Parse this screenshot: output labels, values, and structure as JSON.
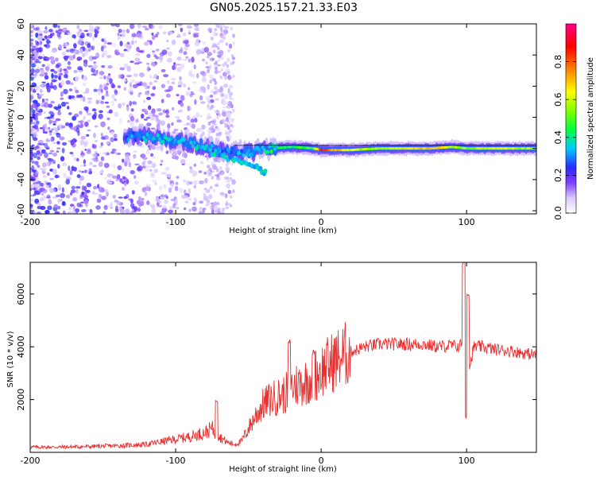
{
  "title": "GN05.2025.157.21.33.E03",
  "chart_data": [
    {
      "type": "heatmap",
      "xlabel": "Height of straight line (km)",
      "ylabel": "Frequency (Hz)",
      "xlim": [
        -200,
        148
      ],
      "ylim": [
        -62,
        60
      ],
      "x_ticks": [
        -200,
        -100,
        0,
        100
      ],
      "y_ticks": [
        60,
        40,
        20,
        0,
        -20,
        -40,
        -60
      ],
      "colorbar": {
        "label": "Normalized spectral amplitude",
        "range": [
          0,
          1
        ],
        "ticks": [
          "0.0",
          "0.2",
          "0.4",
          "0.6",
          "0.8"
        ],
        "tick_values": [
          0,
          0.2,
          0.4,
          0.6,
          0.8
        ]
      },
      "ridge": [
        {
          "x": -135,
          "y": -12,
          "amp": 0.25
        },
        {
          "x": -125,
          "y": -12,
          "amp": 0.3
        },
        {
          "x": -115,
          "y": -13,
          "amp": 0.35
        },
        {
          "x": -105,
          "y": -15,
          "amp": 0.35
        },
        {
          "x": -95,
          "y": -16,
          "amp": 0.3
        },
        {
          "x": -85,
          "y": -18,
          "amp": 0.35
        },
        {
          "x": -75,
          "y": -20,
          "amp": 0.3
        },
        {
          "x": -65,
          "y": -22,
          "amp": 0.3
        },
        {
          "x": -55,
          "y": -22,
          "amp": 0.3
        },
        {
          "x": -45,
          "y": -22,
          "amp": 0.35
        },
        {
          "x": -35,
          "y": -20,
          "amp": 0.4
        },
        {
          "x": -20,
          "y": -19,
          "amp": 0.45
        },
        {
          "x": -5,
          "y": -20,
          "amp": 0.5
        },
        {
          "x": 0,
          "y": -21,
          "amp": 0.85
        },
        {
          "x": 20,
          "y": -21,
          "amp": 0.6
        },
        {
          "x": 40,
          "y": -20,
          "amp": 0.55
        },
        {
          "x": 60,
          "y": -20,
          "amp": 0.65
        },
        {
          "x": 75,
          "y": -20,
          "amp": 0.7
        },
        {
          "x": 90,
          "y": -19,
          "amp": 0.6
        },
        {
          "x": 100,
          "y": -20,
          "amp": 0.55
        },
        {
          "x": 120,
          "y": -20,
          "amp": 0.6
        },
        {
          "x": 148,
          "y": -20,
          "amp": 0.55
        }
      ],
      "diverging_branch": [
        {
          "x": -75,
          "y": -23
        },
        {
          "x": -60,
          "y": -27
        },
        {
          "x": -45,
          "y": -32
        },
        {
          "x": -38,
          "y": -36
        }
      ],
      "noise_region": {
        "x": [
          -200,
          -60
        ],
        "y": [
          -62,
          60
        ],
        "amp": 0.18
      }
    },
    {
      "type": "line",
      "xlabel": "Height of straight line (km)",
      "ylabel": "SNR (10 * v/v)",
      "xlim": [
        -200,
        148
      ],
      "ylim": [
        0,
        7200
      ],
      "x_ticks": [
        -200,
        -100,
        0,
        100
      ],
      "y_ticks": [
        2000,
        4000,
        6000
      ],
      "series": [
        {
          "color": "#e83030",
          "x": [
            -200,
            -180,
            -160,
            -140,
            -120,
            -110,
            -100,
            -90,
            -80,
            -75,
            -70,
            -65,
            -60,
            -55,
            -50,
            -45,
            -40,
            -35,
            -30,
            -25,
            -20,
            -15,
            -10,
            -5,
            0,
            5,
            10,
            20,
            30,
            40,
            50,
            60,
            70,
            80,
            90,
            95,
            98,
            100,
            102,
            105,
            110,
            120,
            130,
            140,
            148
          ],
          "y": [
            200,
            200,
            220,
            250,
            300,
            400,
            500,
            600,
            750,
            900,
            600,
            400,
            300,
            400,
            900,
            1400,
            1800,
            2000,
            2100,
            2200,
            2500,
            2600,
            2700,
            2900,
            3100,
            3300,
            3500,
            3800,
            4000,
            4100,
            4100,
            4100,
            4100,
            4000,
            4050,
            4000,
            4300,
            3900,
            3200,
            4000,
            4000,
            3900,
            3850,
            3750,
            3700
          ]
        }
      ],
      "spikes": [
        {
          "x": -72,
          "y": 2000
        },
        {
          "x": -22,
          "y": 4200
        },
        {
          "x": -5,
          "y": 3800
        },
        {
          "x": 98,
          "y": 7200
        },
        {
          "x": 100,
          "y": 1400
        },
        {
          "x": 101,
          "y": 6000
        }
      ]
    }
  ]
}
